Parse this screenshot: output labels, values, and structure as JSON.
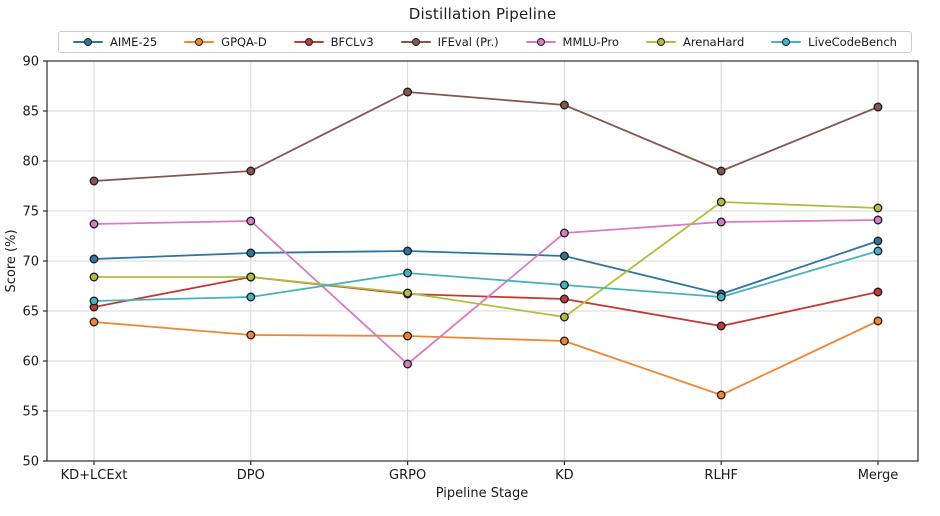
{
  "page": {
    "background": "#ffffff",
    "text_color": "#1a1a1a",
    "grid_color": "#d9d9d9",
    "spine_color": "#2b2b2b",
    "marker_edge_color": "#1c1c1c"
  },
  "chart_data": {
    "type": "line",
    "title": "Distillation Pipeline",
    "xlabel": "Pipeline Stage",
    "ylabel": "Score (%)",
    "categories": [
      "KD+LCExt",
      "DPO",
      "GRPO",
      "KD",
      "RLHF",
      "Merge"
    ],
    "ylim": [
      50,
      90
    ],
    "yticks": [
      50,
      55,
      60,
      65,
      70,
      75,
      80,
      85,
      90
    ],
    "grid": true,
    "legend_position": "top-horizontal",
    "series": [
      {
        "name": "AIME-25",
        "color": "#3274a1",
        "values": [
          70.2,
          70.8,
          71.0,
          70.5,
          66.7,
          72.0
        ]
      },
      {
        "name": "GPQA-D",
        "color": "#ef8636",
        "values": [
          63.9,
          62.6,
          62.5,
          62.0,
          56.6,
          64.0
        ]
      },
      {
        "name": "BFCLv3",
        "color": "#c23b33",
        "values": [
          65.4,
          68.4,
          66.7,
          66.2,
          63.5,
          66.9
        ]
      },
      {
        "name": "IFEval (Pr.)",
        "color": "#84584e",
        "values": [
          78.0,
          79.0,
          86.9,
          85.6,
          79.0,
          85.4
        ]
      },
      {
        "name": "MMLU-Pro",
        "color": "#d87bc6",
        "values": [
          73.7,
          74.0,
          59.7,
          72.8,
          73.9,
          74.1
        ]
      },
      {
        "name": "ArenaHard",
        "color": "#b2bd3e",
        "values": [
          68.4,
          68.4,
          66.8,
          64.4,
          75.9,
          75.3
        ]
      },
      {
        "name": "LiveCodeBench",
        "color": "#46b1c0",
        "values": [
          66.0,
          66.4,
          68.8,
          67.6,
          66.4,
          71.0
        ]
      }
    ]
  }
}
